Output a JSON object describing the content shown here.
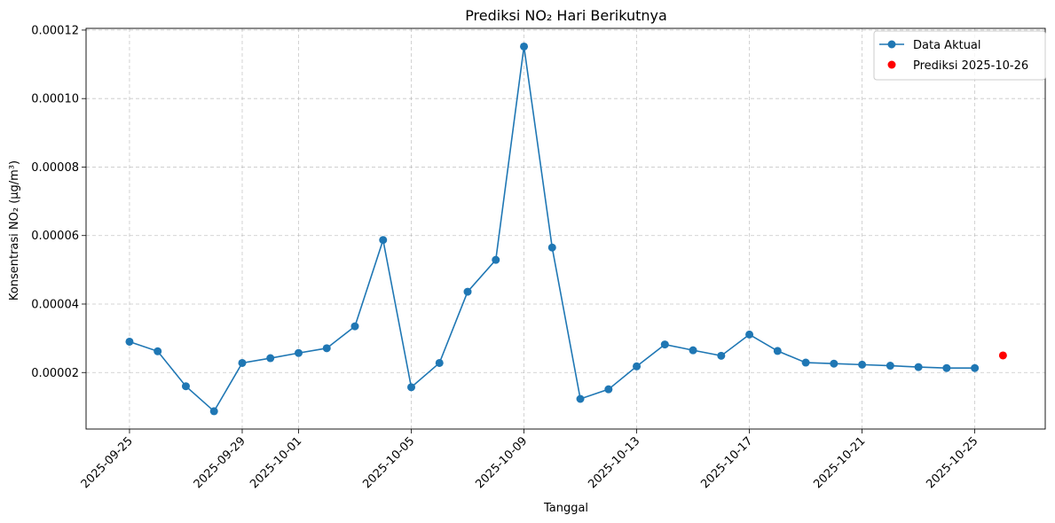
{
  "chart_data": {
    "type": "line",
    "title": "Prediksi NO₂ Hari Berikutnya",
    "xlabel": "Tanggal",
    "ylabel": "Konsentrasi NO₂ (µg/m³)",
    "x_ticks": [
      "2025-09-25",
      "2025-09-29",
      "2025-10-01",
      "2025-10-05",
      "2025-10-09",
      "2025-10-13",
      "2025-10-17",
      "2025-10-21",
      "2025-10-25"
    ],
    "y_ticks": [
      "0.00002",
      "0.00004",
      "0.00006",
      "0.00008",
      "0.00010",
      "0.00012"
    ],
    "ylim": [
      3.5e-06,
      0.0001205
    ],
    "xlim": [
      "2025-09-23T11:00",
      "2025-10-27T12:00"
    ],
    "grid": true,
    "legend_position": "top-right",
    "series": [
      {
        "name": "Data Aktual",
        "color": "#1f77b4",
        "style": "line-marker",
        "x": [
          "2025-09-25",
          "2025-09-26",
          "2025-09-27",
          "2025-09-28",
          "2025-09-29",
          "2025-09-30",
          "2025-10-01",
          "2025-10-02",
          "2025-10-03",
          "2025-10-04",
          "2025-10-05",
          "2025-10-06",
          "2025-10-07",
          "2025-10-08",
          "2025-10-09",
          "2025-10-10",
          "2025-10-11",
          "2025-10-12",
          "2025-10-13",
          "2025-10-14",
          "2025-10-15",
          "2025-10-16",
          "2025-10-17",
          "2025-10-18",
          "2025-10-19",
          "2025-10-20",
          "2025-10-21",
          "2025-10-22",
          "2025-10-23",
          "2025-10-24",
          "2025-10-25"
        ],
        "y": [
          2.9e-05,
          2.62e-05,
          1.6e-05,
          8.7e-06,
          2.28e-05,
          2.42e-05,
          2.57e-05,
          2.71e-05,
          3.35e-05,
          5.87e-05,
          1.57e-05,
          2.28e-05,
          4.36e-05,
          5.29e-05,
          0.0001152,
          5.65e-05,
          1.23e-05,
          1.51e-05,
          2.18e-05,
          2.82e-05,
          2.65e-05,
          2.49e-05,
          3.11e-05,
          2.63e-05,
          2.29e-05,
          2.26e-05,
          2.23e-05,
          2.2e-05,
          2.16e-05,
          2.13e-05,
          2.13e-05
        ]
      },
      {
        "name": "Prediksi 2025-10-26",
        "color": "#ff0000",
        "style": "scatter",
        "x": [
          "2025-10-26"
        ],
        "y": [
          2.5e-05
        ]
      }
    ]
  }
}
